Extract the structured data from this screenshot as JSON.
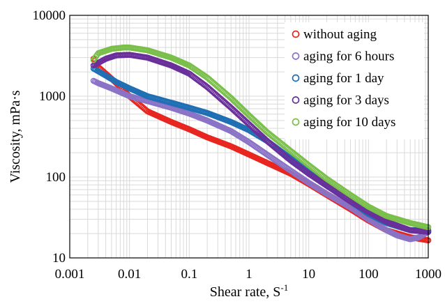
{
  "chart_data": {
    "type": "scatter",
    "title": "",
    "xlabel": "Shear rate, S",
    "xlabel_sup": "-1",
    "ylabel": "Viscosity, mPa·s",
    "x_scale": "log",
    "y_scale": "log",
    "xlim": [
      0.001,
      1000
    ],
    "ylim": [
      10,
      10000
    ],
    "x_ticks": [
      "0.001",
      "0.01",
      "0.1",
      "1",
      "10",
      "100",
      "1000"
    ],
    "y_ticks": [
      "10",
      "100",
      "1000",
      "10000"
    ],
    "grid": true,
    "legend_position": "top-right",
    "series": [
      {
        "name": "without aging",
        "color": "#e8251f",
        "points": [
          [
            0.0025,
            2900
          ],
          [
            0.003,
            2300
          ],
          [
            0.005,
            1650
          ],
          [
            0.01,
            1000
          ],
          [
            0.02,
            650
          ],
          [
            0.05,
            480
          ],
          [
            0.1,
            390
          ],
          [
            0.2,
            310
          ],
          [
            0.5,
            240
          ],
          [
            1,
            190
          ],
          [
            2,
            150
          ],
          [
            5,
            110
          ],
          [
            10,
            82
          ],
          [
            20,
            60
          ],
          [
            50,
            40
          ],
          [
            100,
            29
          ],
          [
            200,
            22
          ],
          [
            500,
            18
          ],
          [
            1000,
            16.5
          ]
        ]
      },
      {
        "name": "aging for 6 hours",
        "color": "#8a73c6",
        "points": [
          [
            0.0025,
            1550
          ],
          [
            0.003,
            1450
          ],
          [
            0.005,
            1250
          ],
          [
            0.01,
            1000
          ],
          [
            0.02,
            870
          ],
          [
            0.05,
            720
          ],
          [
            0.1,
            610
          ],
          [
            0.2,
            500
          ],
          [
            0.5,
            370
          ],
          [
            1,
            270
          ],
          [
            2,
            190
          ],
          [
            5,
            120
          ],
          [
            10,
            85
          ],
          [
            20,
            62
          ],
          [
            50,
            42
          ],
          [
            100,
            30
          ],
          [
            200,
            22
          ],
          [
            300,
            19
          ],
          [
            500,
            17
          ],
          [
            700,
            18
          ],
          [
            1000,
            21
          ]
        ]
      },
      {
        "name": "aging for 1 day",
        "color": "#1f6fb4",
        "points": [
          [
            0.0025,
            2200
          ],
          [
            0.004,
            1800
          ],
          [
            0.006,
            1500
          ],
          [
            0.01,
            1250
          ],
          [
            0.02,
            1000
          ],
          [
            0.05,
            830
          ],
          [
            0.1,
            720
          ],
          [
            0.2,
            620
          ],
          [
            0.5,
            480
          ],
          [
            1,
            380
          ],
          [
            2,
            280
          ],
          [
            5,
            170
          ],
          [
            10,
            115
          ],
          [
            20,
            80
          ],
          [
            50,
            50
          ],
          [
            100,
            35
          ],
          [
            200,
            27
          ],
          [
            500,
            22
          ],
          [
            1000,
            22
          ]
        ]
      },
      {
        "name": "aging for 3 days",
        "color": "#6a2f9a",
        "points": [
          [
            0.0025,
            2400
          ],
          [
            0.004,
            2900
          ],
          [
            0.006,
            3200
          ],
          [
            0.01,
            3250
          ],
          [
            0.02,
            3000
          ],
          [
            0.05,
            2400
          ],
          [
            0.1,
            1900
          ],
          [
            0.2,
            1300
          ],
          [
            0.5,
            720
          ],
          [
            1,
            450
          ],
          [
            2,
            280
          ],
          [
            5,
            160
          ],
          [
            10,
            110
          ],
          [
            20,
            78
          ],
          [
            50,
            50
          ],
          [
            100,
            37
          ],
          [
            200,
            28
          ],
          [
            500,
            22
          ],
          [
            1000,
            21
          ]
        ]
      },
      {
        "name": "aging for 10 days",
        "color": "#79bf4a",
        "points": [
          [
            0.0025,
            2800
          ],
          [
            0.003,
            3400
          ],
          [
            0.005,
            3850
          ],
          [
            0.008,
            4000
          ],
          [
            0.01,
            4000
          ],
          [
            0.02,
            3700
          ],
          [
            0.05,
            3000
          ],
          [
            0.1,
            2400
          ],
          [
            0.2,
            1700
          ],
          [
            0.5,
            950
          ],
          [
            1,
            580
          ],
          [
            2,
            360
          ],
          [
            5,
            210
          ],
          [
            10,
            140
          ],
          [
            20,
            95
          ],
          [
            50,
            60
          ],
          [
            100,
            43
          ],
          [
            200,
            33
          ],
          [
            500,
            27
          ],
          [
            1000,
            24
          ]
        ]
      }
    ]
  }
}
